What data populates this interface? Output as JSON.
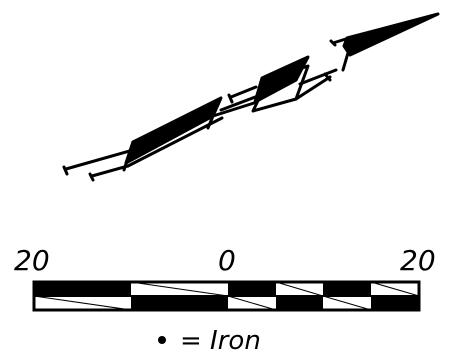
{
  "scale_bar": {
    "labels": [
      "20",
      "0",
      "20"
    ]
  },
  "legend": {
    "symbol_name": "iron-dot",
    "text": "= Iron"
  },
  "colors": {
    "ink": "#000000",
    "paper": "#ffffff"
  }
}
